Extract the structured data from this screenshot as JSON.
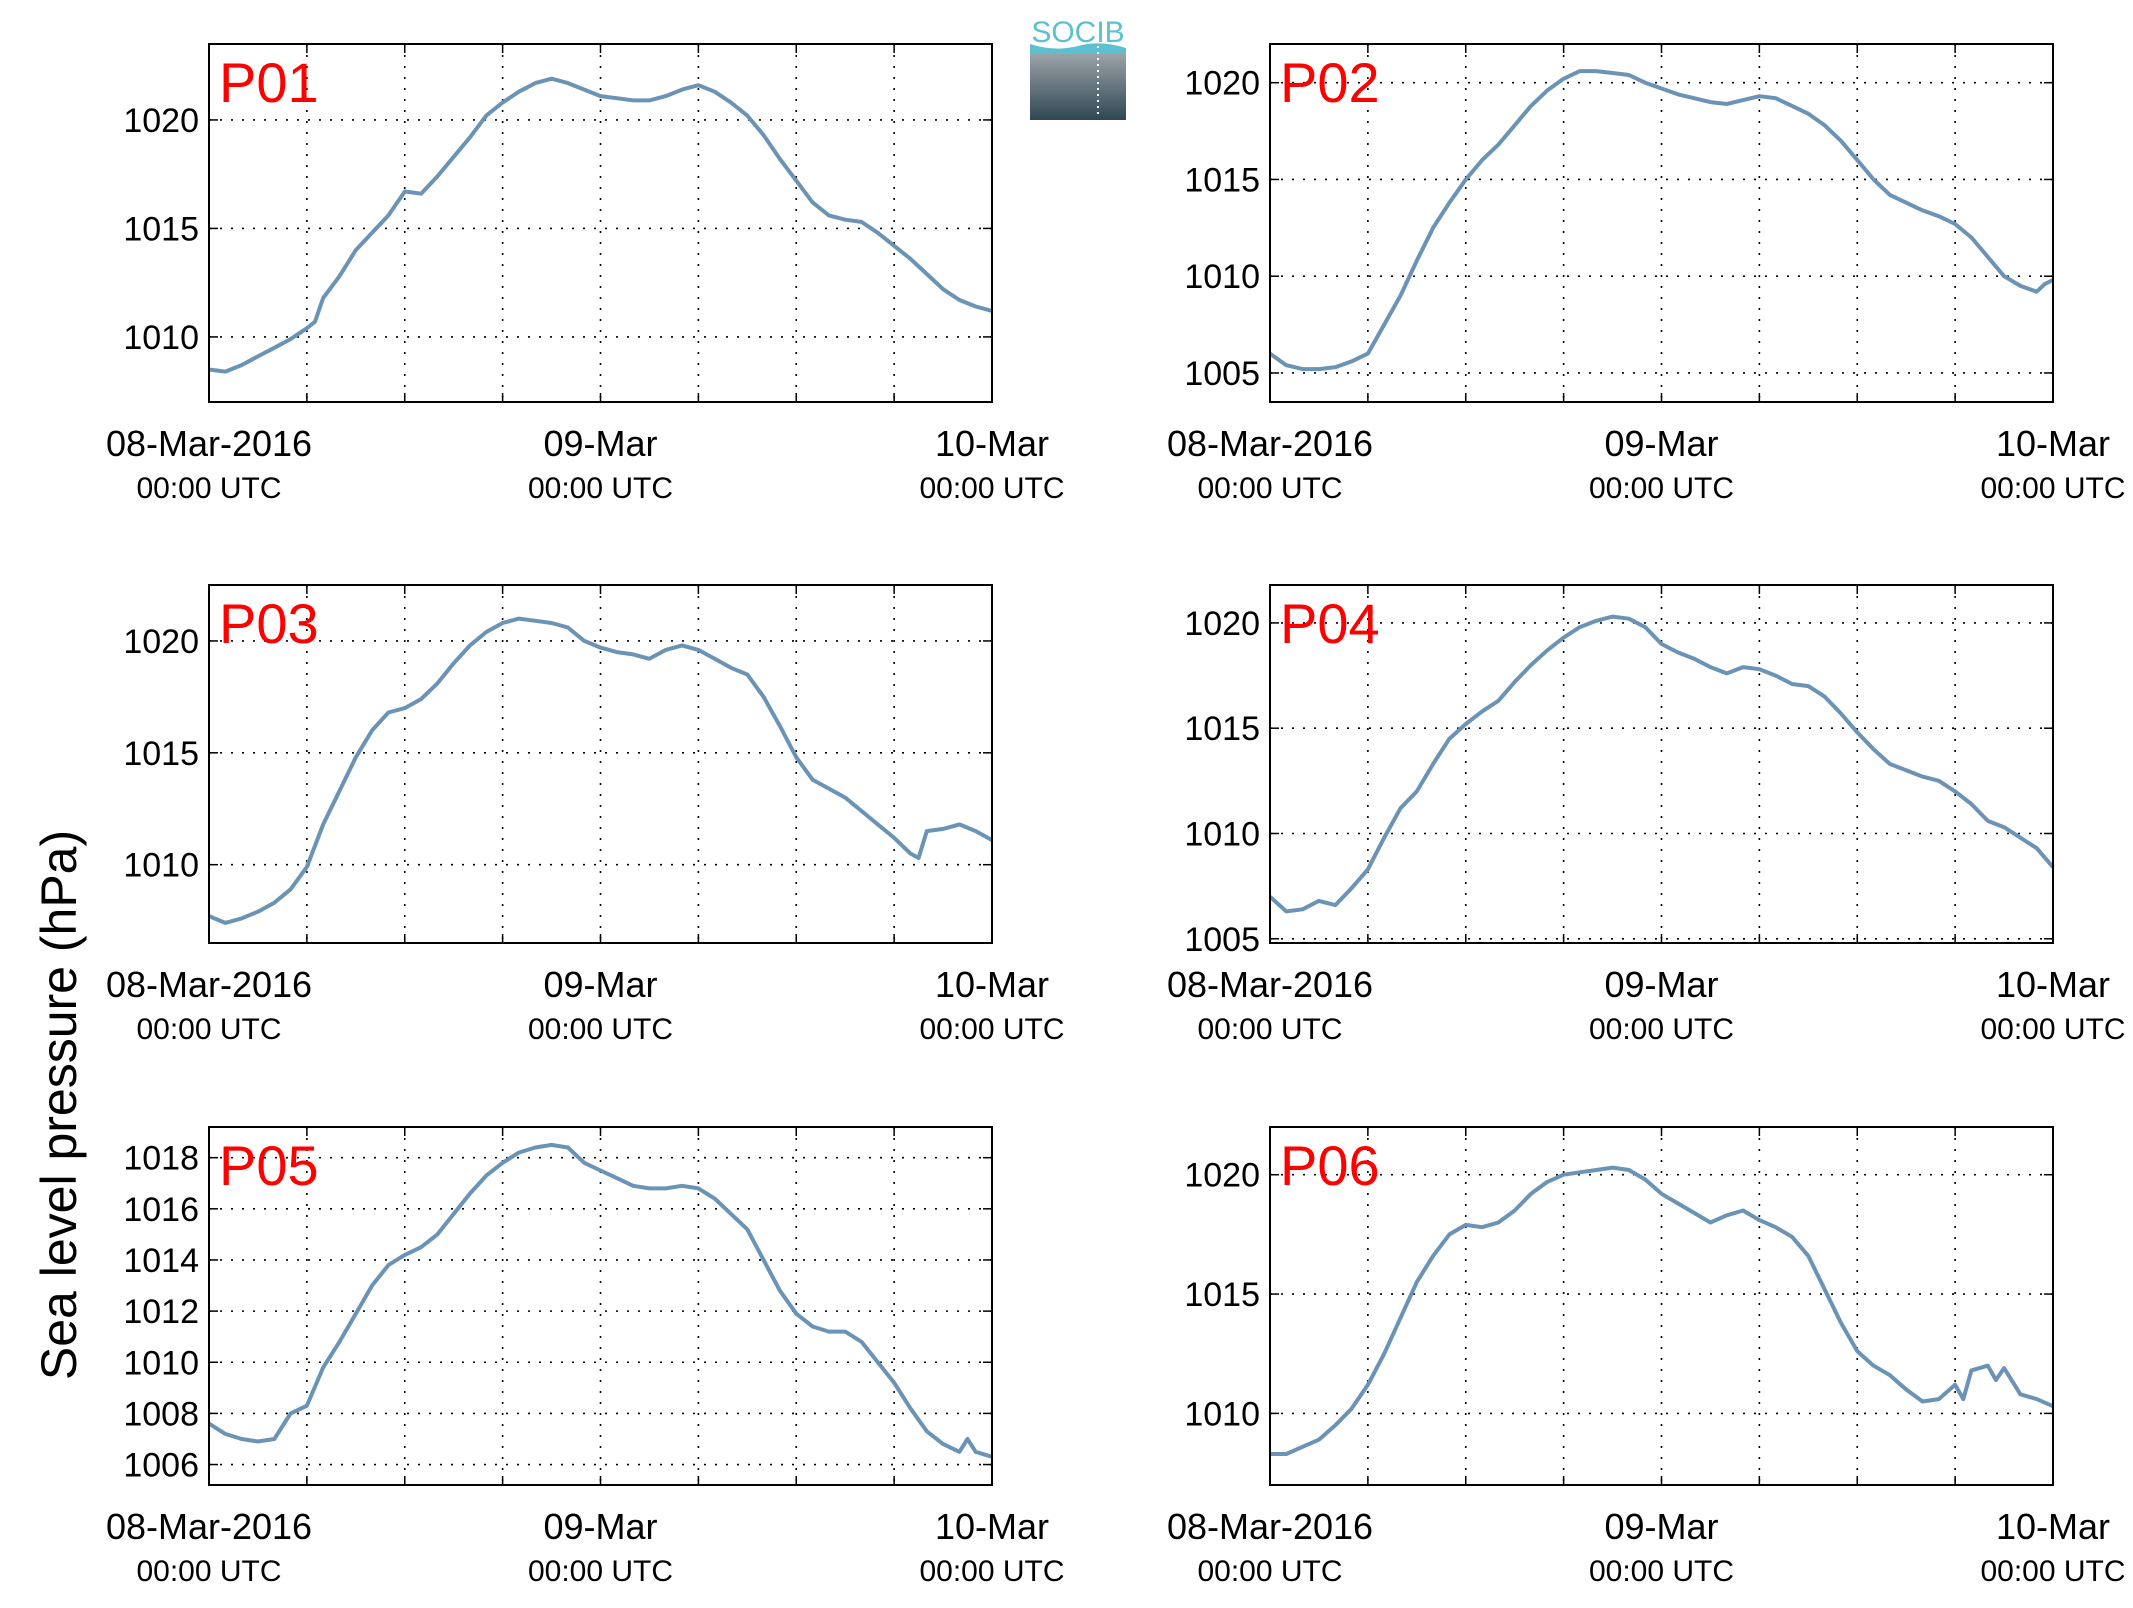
{
  "ylabel": "Sea level pressure (hPa)",
  "logo": {
    "text": "SOCIB",
    "color_top": "#9aa3a8",
    "color_bottom": "#2f4752",
    "text_color": "#5cc0d0"
  },
  "line_color": "#6b93b5",
  "label_color": "#ff0000",
  "xticks": {
    "dates": [
      "08-Mar-2016",
      "09-Mar",
      "10-Mar"
    ],
    "times": [
      "00:00 UTC",
      "00:00 UTC",
      "00:00 UTC"
    ]
  },
  "chart_data": [
    {
      "type": "line",
      "label": "P01",
      "xlim": [
        0,
        48
      ],
      "ylim": [
        1007,
        1023.5
      ],
      "yticks": [
        1010,
        1015,
        1020
      ],
      "x": [
        0,
        1,
        2,
        3,
        4,
        5,
        6,
        6.5,
        7,
        8,
        9,
        10,
        11,
        12,
        13,
        14,
        15,
        16,
        17,
        18,
        19,
        20,
        21,
        22,
        23,
        24,
        25,
        26,
        27,
        28,
        29,
        30,
        31,
        32,
        33,
        34,
        35,
        36,
        37,
        38,
        39,
        40,
        41,
        42,
        43,
        44,
        45,
        46,
        47,
        48
      ],
      "y": [
        1008.5,
        1008.4,
        1008.7,
        1009.1,
        1009.5,
        1009.9,
        1010.4,
        1010.7,
        1011.8,
        1012.8,
        1014.0,
        1014.8,
        1015.6,
        1016.7,
        1016.6,
        1017.4,
        1018.3,
        1019.2,
        1020.2,
        1020.8,
        1021.3,
        1021.7,
        1021.9,
        1021.7,
        1021.4,
        1021.1,
        1021.0,
        1020.9,
        1020.9,
        1021.1,
        1021.4,
        1021.6,
        1021.3,
        1020.8,
        1020.2,
        1019.3,
        1018.2,
        1017.2,
        1016.2,
        1015.6,
        1015.4,
        1015.3,
        1014.8,
        1014.2,
        1013.6,
        1012.9,
        1012.2,
        1011.7,
        1011.4,
        1011.2
      ]
    },
    {
      "type": "line",
      "label": "P02",
      "xlim": [
        0,
        48
      ],
      "ylim": [
        1003.5,
        1022
      ],
      "yticks": [
        1005,
        1010,
        1015,
        1020
      ],
      "x": [
        0,
        1,
        2,
        3,
        4,
        5,
        6,
        7,
        8,
        9,
        10,
        11,
        12,
        13,
        14,
        15,
        16,
        17,
        18,
        19,
        20,
        21,
        22,
        23,
        24,
        25,
        26,
        27,
        28,
        29,
        30,
        31,
        32,
        33,
        34,
        35,
        36,
        37,
        38,
        39,
        40,
        41,
        42,
        43,
        44,
        45,
        46,
        47,
        47.5,
        48
      ],
      "y": [
        1006.0,
        1005.4,
        1005.2,
        1005.2,
        1005.3,
        1005.6,
        1006.0,
        1007.5,
        1009.0,
        1010.8,
        1012.5,
        1013.8,
        1015.0,
        1016.0,
        1016.8,
        1017.8,
        1018.8,
        1019.6,
        1020.2,
        1020.6,
        1020.6,
        1020.5,
        1020.4,
        1020.0,
        1019.7,
        1019.4,
        1019.2,
        1019.0,
        1018.9,
        1019.1,
        1019.3,
        1019.2,
        1018.8,
        1018.4,
        1017.8,
        1017.0,
        1016.0,
        1015.0,
        1014.2,
        1013.8,
        1013.4,
        1013.1,
        1012.7,
        1012.0,
        1011.0,
        1010.0,
        1009.5,
        1009.2,
        1009.6,
        1009.8
      ]
    },
    {
      "type": "line",
      "label": "P03",
      "xlim": [
        0,
        48
      ],
      "ylim": [
        1006.5,
        1022.5
      ],
      "yticks": [
        1010,
        1015,
        1020
      ],
      "x": [
        0,
        1,
        2,
        3,
        4,
        5,
        6,
        7,
        8,
        9,
        10,
        11,
        12,
        13,
        14,
        15,
        16,
        17,
        18,
        19,
        20,
        21,
        22,
        23,
        24,
        25,
        26,
        27,
        28,
        29,
        30,
        31,
        32,
        33,
        34,
        35,
        36,
        37,
        38,
        39,
        40,
        41,
        42,
        43,
        43.5,
        44,
        45,
        46,
        47,
        48
      ],
      "y": [
        1007.7,
        1007.4,
        1007.6,
        1007.9,
        1008.3,
        1008.9,
        1009.9,
        1011.8,
        1013.3,
        1014.8,
        1016.0,
        1016.8,
        1017.0,
        1017.4,
        1018.1,
        1019.0,
        1019.8,
        1020.4,
        1020.8,
        1021.0,
        1020.9,
        1020.8,
        1020.6,
        1020.0,
        1019.7,
        1019.5,
        1019.4,
        1019.2,
        1019.6,
        1019.8,
        1019.6,
        1019.2,
        1018.8,
        1018.5,
        1017.5,
        1016.2,
        1014.8,
        1013.8,
        1013.4,
        1013.0,
        1012.4,
        1011.8,
        1011.2,
        1010.5,
        1010.3,
        1011.5,
        1011.6,
        1011.8,
        1011.5,
        1011.1
      ]
    },
    {
      "type": "line",
      "label": "P04",
      "xlim": [
        0,
        48
      ],
      "ylim": [
        1004.8,
        1021.8
      ],
      "yticks": [
        1005,
        1010,
        1015,
        1020
      ],
      "x": [
        0,
        1,
        2,
        3,
        4,
        5,
        6,
        7,
        8,
        9,
        10,
        11,
        12,
        13,
        14,
        15,
        16,
        17,
        18,
        19,
        20,
        21,
        22,
        23,
        24,
        25,
        26,
        27,
        28,
        29,
        30,
        31,
        32,
        33,
        34,
        35,
        36,
        37,
        38,
        39,
        40,
        41,
        42,
        43,
        44,
        45,
        46,
        47,
        48
      ],
      "y": [
        1007.0,
        1006.3,
        1006.4,
        1006.8,
        1006.6,
        1007.4,
        1008.3,
        1009.8,
        1011.2,
        1012.0,
        1013.3,
        1014.5,
        1015.2,
        1015.8,
        1016.3,
        1017.2,
        1018.0,
        1018.7,
        1019.3,
        1019.8,
        1020.1,
        1020.3,
        1020.2,
        1019.8,
        1019.0,
        1018.6,
        1018.3,
        1017.9,
        1017.6,
        1017.9,
        1017.8,
        1017.5,
        1017.1,
        1017.0,
        1016.5,
        1015.7,
        1014.8,
        1014.0,
        1013.3,
        1013.0,
        1012.7,
        1012.5,
        1012.0,
        1011.4,
        1010.6,
        1010.3,
        1009.8,
        1009.3,
        1008.4
      ]
    },
    {
      "type": "line",
      "label": "P05",
      "xlim": [
        0,
        48
      ],
      "ylim": [
        1005.2,
        1019.2
      ],
      "yticks": [
        1006,
        1008,
        1010,
        1012,
        1014,
        1016,
        1018
      ],
      "x": [
        0,
        1,
        2,
        3,
        4,
        5,
        6,
        7,
        8,
        9,
        10,
        11,
        12,
        13,
        14,
        15,
        16,
        17,
        18,
        19,
        20,
        21,
        22,
        23,
        24,
        25,
        26,
        27,
        28,
        29,
        30,
        31,
        32,
        33,
        34,
        35,
        36,
        37,
        38,
        39,
        40,
        41,
        42,
        43,
        44,
        45,
        46,
        46.5,
        47,
        48
      ],
      "y": [
        1007.6,
        1007.2,
        1007.0,
        1006.9,
        1007.0,
        1008.0,
        1008.3,
        1009.8,
        1010.8,
        1011.9,
        1013.0,
        1013.8,
        1014.2,
        1014.5,
        1015.0,
        1015.8,
        1016.6,
        1017.3,
        1017.8,
        1018.2,
        1018.4,
        1018.5,
        1018.4,
        1017.8,
        1017.5,
        1017.2,
        1016.9,
        1016.8,
        1016.8,
        1016.9,
        1016.8,
        1016.4,
        1015.8,
        1015.2,
        1014.0,
        1012.8,
        1011.9,
        1011.4,
        1011.2,
        1011.2,
        1010.8,
        1010.0,
        1009.2,
        1008.2,
        1007.3,
        1006.8,
        1006.5,
        1007.0,
        1006.5,
        1006.3
      ]
    },
    {
      "type": "line",
      "label": "P06",
      "xlim": [
        0,
        48
      ],
      "ylim": [
        1007,
        1022
      ],
      "yticks": [
        1010,
        1015,
        1020
      ],
      "x": [
        0,
        1,
        2,
        3,
        4,
        5,
        6,
        7,
        8,
        9,
        10,
        11,
        12,
        13,
        14,
        15,
        16,
        17,
        18,
        19,
        20,
        21,
        22,
        23,
        24,
        25,
        26,
        27,
        28,
        29,
        30,
        31,
        32,
        33,
        34,
        35,
        36,
        37,
        38,
        39,
        40,
        41,
        42,
        42.5,
        43,
        44,
        44.5,
        45,
        46,
        47,
        48
      ],
      "y": [
        1008.3,
        1008.3,
        1008.6,
        1008.9,
        1009.5,
        1010.2,
        1011.2,
        1012.5,
        1014.0,
        1015.5,
        1016.6,
        1017.5,
        1017.9,
        1017.8,
        1018.0,
        1018.5,
        1019.2,
        1019.7,
        1020.0,
        1020.1,
        1020.2,
        1020.3,
        1020.2,
        1019.8,
        1019.2,
        1018.8,
        1018.4,
        1018.0,
        1018.3,
        1018.5,
        1018.1,
        1017.8,
        1017.4,
        1016.6,
        1015.2,
        1013.8,
        1012.6,
        1012.0,
        1011.6,
        1011.0,
        1010.5,
        1010.6,
        1011.2,
        1010.6,
        1011.8,
        1012.0,
        1011.4,
        1011.9,
        1010.8,
        1010.6,
        1010.3
      ]
    }
  ]
}
